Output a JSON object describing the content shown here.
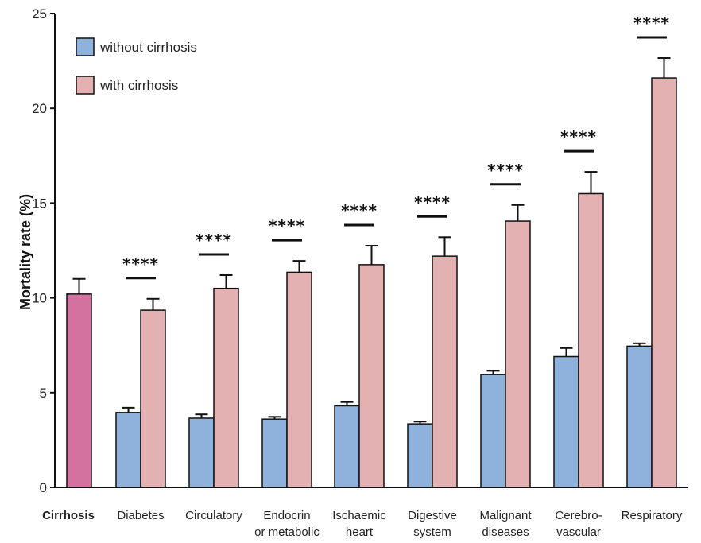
{
  "chart_data": {
    "type": "bar",
    "ylabel": "Mortality rate (%)",
    "ylim": [
      0,
      25
    ],
    "yticks": [
      0,
      5,
      10,
      15,
      20,
      25
    ],
    "legend": {
      "position": "top-left",
      "entries": [
        {
          "label": "without cirrhosis",
          "color": "#8fb2dd"
        },
        {
          "label": "with cirrhosis",
          "color": "#e3b1b2"
        }
      ]
    },
    "cirrhosis_bar": {
      "label": "Cirrhosis",
      "value": 10.2,
      "error": 0.8,
      "color": "#d4729f"
    },
    "categories": [
      {
        "label": [
          "Diabetes"
        ],
        "without": 3.95,
        "without_err": 0.25,
        "with": 9.35,
        "with_err": 0.6,
        "sig": "****"
      },
      {
        "label": [
          "Circulatory"
        ],
        "without": 3.65,
        "without_err": 0.2,
        "with": 10.5,
        "with_err": 0.7,
        "sig": "****"
      },
      {
        "label": [
          "Endocrin",
          "or metabolic"
        ],
        "without": 3.6,
        "without_err": 0.12,
        "with": 11.35,
        "with_err": 0.6,
        "sig": "****"
      },
      {
        "label": [
          "Ischaemic",
          "heart"
        ],
        "without": 4.3,
        "without_err": 0.2,
        "with": 11.75,
        "with_err": 1.0,
        "sig": "****"
      },
      {
        "label": [
          "Digestive",
          "system"
        ],
        "without": 3.35,
        "without_err": 0.12,
        "with": 12.2,
        "with_err": 1.0,
        "sig": "****"
      },
      {
        "label": [
          "Malignant",
          "diseases"
        ],
        "without": 5.95,
        "without_err": 0.2,
        "with": 14.05,
        "with_err": 0.85,
        "sig": "****"
      },
      {
        "label": [
          "Cerebro-",
          "vascular"
        ],
        "without": 6.9,
        "without_err": 0.45,
        "with": 15.5,
        "with_err": 1.15,
        "sig": "****"
      },
      {
        "label": [
          "Respiratory"
        ],
        "without": 7.45,
        "without_err": 0.15,
        "with": 21.6,
        "with_err": 1.05,
        "sig": "****"
      }
    ],
    "colors": {
      "without": "#8fb2dd",
      "with": "#e3b1b2",
      "stroke": "#111111"
    }
  }
}
